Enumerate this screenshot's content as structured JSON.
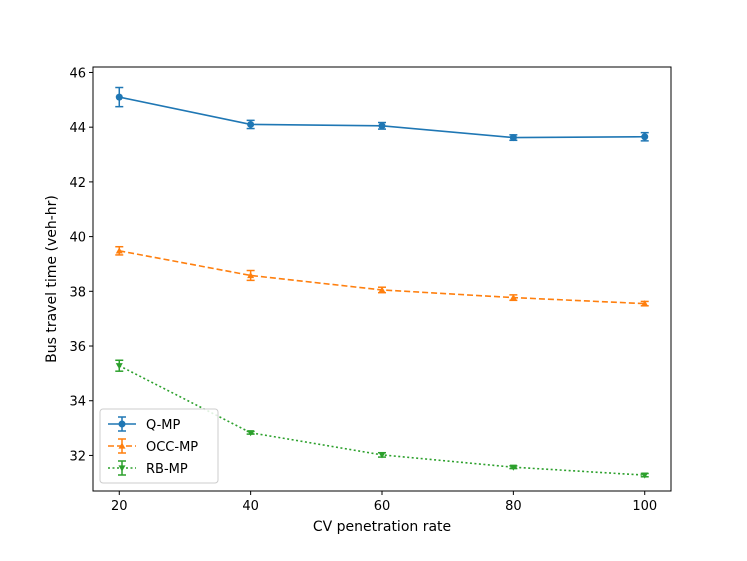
{
  "chart_data": {
    "type": "line",
    "title": "",
    "xlabel": "CV penetration rate",
    "ylabel": "Bus travel time (veh-hr)",
    "x": [
      20,
      40,
      60,
      80,
      100
    ],
    "xticks": [
      "20",
      "40",
      "60",
      "80",
      "100"
    ],
    "yticks": [
      "32",
      "34",
      "36",
      "38",
      "40",
      "42",
      "44",
      "46"
    ],
    "xlim": [
      16,
      104
    ],
    "ylim": [
      30.7,
      46.2
    ],
    "grid": false,
    "legend_position": "lower-left",
    "series": [
      {
        "name": "Q-MP",
        "values": [
          45.1,
          44.1,
          44.05,
          43.62,
          43.65
        ],
        "errors": [
          0.35,
          0.15,
          0.12,
          0.1,
          0.15
        ],
        "color": "#1f77b4",
        "linestyle": "solid",
        "marker": "circle"
      },
      {
        "name": "OCC-MP",
        "values": [
          39.48,
          38.58,
          38.05,
          37.77,
          37.55
        ],
        "errors": [
          0.15,
          0.18,
          0.1,
          0.1,
          0.08
        ],
        "color": "#ff7f0e",
        "linestyle": "dashed",
        "marker": "triangle-up"
      },
      {
        "name": "RB-MP",
        "values": [
          35.28,
          32.83,
          32.02,
          31.57,
          31.28
        ],
        "errors": [
          0.2,
          0.05,
          0.08,
          0.05,
          0.06
        ],
        "color": "#2ca02c",
        "linestyle": "dotted",
        "marker": "triangle-down"
      }
    ]
  }
}
